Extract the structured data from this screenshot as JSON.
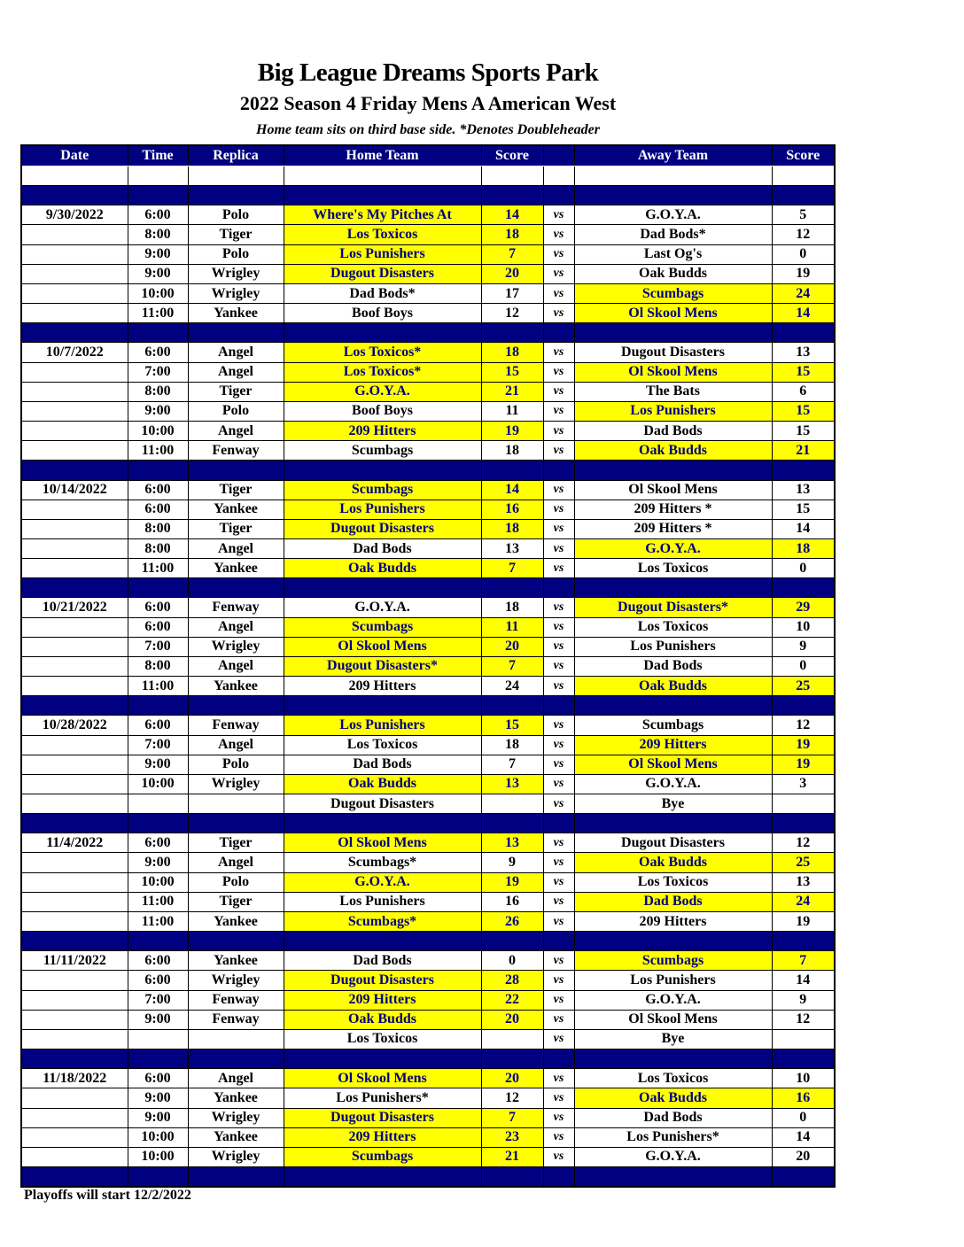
{
  "title": "Big League Dreams Sports Park",
  "subtitle": "2022 Season 4 Friday Mens A American West",
  "note": "Home team sits on third base side.  *Denotes Doubleheader",
  "headers": [
    "Date",
    "Time",
    "Replica",
    "Home Team",
    "Score",
    "",
    "Away Team",
    "Score"
  ],
  "vs_label": "vs",
  "footer": "Playoffs will start 12/2/2022",
  "colors": {
    "header": "#000080",
    "winner_highlight": "#ffff00",
    "winner_text": "#000080"
  },
  "weeks": [
    {
      "date": "9/30/2022",
      "games": [
        {
          "time": "6:00",
          "field": "Polo",
          "home": "Where's My Pitches At",
          "home_score": "14",
          "away": "G.O.Y.A.",
          "away_score": "5",
          "winner": "home"
        },
        {
          "time": "8:00",
          "field": "Tiger",
          "home": "Los Toxicos",
          "home_score": "18",
          "away": "Dad Bods*",
          "away_score": "12",
          "winner": "home"
        },
        {
          "time": "9:00",
          "field": "Polo",
          "home": "Los Punishers",
          "home_score": "7",
          "away": "Last Og's",
          "away_score": "0",
          "winner": "home"
        },
        {
          "time": "9:00",
          "field": "Wrigley",
          "home": "Dugout Disasters",
          "home_score": "20",
          "away": "Oak Budds",
          "away_score": "19",
          "winner": "home"
        },
        {
          "time": "10:00",
          "field": "Wrigley",
          "home": "Dad Bods*",
          "home_score": "17",
          "away": "Scumbags",
          "away_score": "24",
          "winner": "away"
        },
        {
          "time": "11:00",
          "field": "Yankee",
          "home": "Boof Boys",
          "home_score": "12",
          "away": "Ol Skool Mens",
          "away_score": "14",
          "winner": "away"
        }
      ]
    },
    {
      "date": "10/7/2022",
      "games": [
        {
          "time": "6:00",
          "field": "Angel",
          "home": "Los Toxicos*",
          "home_score": "18",
          "away": "Dugout Disasters",
          "away_score": "13",
          "winner": "home"
        },
        {
          "time": "7:00",
          "field": "Angel",
          "home": "Los Toxicos*",
          "home_score": "15",
          "away": "Ol Skool Mens",
          "away_score": "15",
          "winner": "both"
        },
        {
          "time": "8:00",
          "field": "Tiger",
          "home": "G.O.Y.A.",
          "home_score": "21",
          "away": "The Bats",
          "away_score": "6",
          "winner": "home"
        },
        {
          "time": "9:00",
          "field": "Polo",
          "home": "Boof Boys",
          "home_score": "11",
          "away": "Los Punishers",
          "away_score": "15",
          "winner": "away"
        },
        {
          "time": "10:00",
          "field": "Angel",
          "home": "209 Hitters",
          "home_score": "19",
          "away": "Dad Bods",
          "away_score": "15",
          "winner": "home"
        },
        {
          "time": "11:00",
          "field": "Fenway",
          "home": "Scumbags",
          "home_score": "18",
          "away": "Oak Budds",
          "away_score": "21",
          "winner": "away"
        }
      ]
    },
    {
      "date": "10/14/2022",
      "games": [
        {
          "time": "6:00",
          "field": "Tiger",
          "home": "Scumbags",
          "home_score": "14",
          "away": "Ol Skool Mens",
          "away_score": "13",
          "winner": "home"
        },
        {
          "time": "6:00",
          "field": "Yankee",
          "home": "Los Punishers",
          "home_score": "16",
          "away": "209 Hitters *",
          "away_score": "15",
          "winner": "home"
        },
        {
          "time": "8:00",
          "field": "Tiger",
          "home": "Dugout Disasters",
          "home_score": "18",
          "away": "209 Hitters *",
          "away_score": "14",
          "winner": "home"
        },
        {
          "time": "8:00",
          "field": "Angel",
          "home": "Dad Bods",
          "home_score": "13",
          "away": "G.O.Y.A.",
          "away_score": "18",
          "winner": "away"
        },
        {
          "time": "11:00",
          "field": "Yankee",
          "home": "Oak Budds",
          "home_score": "7",
          "away": "Los Toxicos",
          "away_score": "0",
          "winner": "home"
        }
      ]
    },
    {
      "date": "10/21/2022",
      "games": [
        {
          "time": "6:00",
          "field": "Fenway",
          "home": "G.O.Y.A.",
          "home_score": "18",
          "away": "Dugout Disasters*",
          "away_score": "29",
          "winner": "away"
        },
        {
          "time": "6:00",
          "field": "Angel",
          "home": "Scumbags",
          "home_score": "11",
          "away": "Los Toxicos",
          "away_score": "10",
          "winner": "home"
        },
        {
          "time": "7:00",
          "field": "Wrigley",
          "home": "Ol Skool Mens",
          "home_score": "20",
          "away": "Los Punishers",
          "away_score": "9",
          "winner": "home"
        },
        {
          "time": "8:00",
          "field": "Angel",
          "home": "Dugout Disasters*",
          "home_score": "7",
          "away": "Dad Bods",
          "away_score": "0",
          "winner": "home"
        },
        {
          "time": "11:00",
          "field": "Yankee",
          "home": "209 Hitters",
          "home_score": "24",
          "away": "Oak Budds",
          "away_score": "25",
          "winner": "away"
        }
      ]
    },
    {
      "date": "10/28/2022",
      "games": [
        {
          "time": "6:00",
          "field": "Fenway",
          "home": "Los Punishers",
          "home_score": "15",
          "away": "Scumbags",
          "away_score": "12",
          "winner": "home"
        },
        {
          "time": "7:00",
          "field": "Angel",
          "home": "Los Toxicos",
          "home_score": "18",
          "away": "209 Hitters",
          "away_score": "19",
          "winner": "away"
        },
        {
          "time": "9:00",
          "field": "Polo",
          "home": "Dad Bods",
          "home_score": "7",
          "away": "Ol Skool Mens",
          "away_score": "19",
          "winner": "away"
        },
        {
          "time": "10:00",
          "field": "Wrigley",
          "home": "Oak Budds",
          "home_score": "13",
          "away": "G.O.Y.A.",
          "away_score": "3",
          "winner": "home"
        },
        {
          "time": "",
          "field": "",
          "home": "Dugout Disasters",
          "home_score": "",
          "away": "Bye",
          "away_score": "",
          "winner": ""
        }
      ]
    },
    {
      "date": "11/4/2022",
      "games": [
        {
          "time": "6:00",
          "field": "Tiger",
          "home": "Ol Skool Mens",
          "home_score": "13",
          "away": "Dugout Disasters",
          "away_score": "12",
          "winner": "home"
        },
        {
          "time": "9:00",
          "field": "Angel",
          "home": "Scumbags*",
          "home_score": "9",
          "away": "Oak Budds",
          "away_score": "25",
          "winner": "away"
        },
        {
          "time": "10:00",
          "field": "Polo",
          "home": "G.O.Y.A.",
          "home_score": "19",
          "away": "Los Toxicos",
          "away_score": "13",
          "winner": "home"
        },
        {
          "time": "11:00",
          "field": "Tiger",
          "home": "Los Punishers",
          "home_score": "16",
          "away": "Dad Bods",
          "away_score": "24",
          "winner": "away"
        },
        {
          "time": "11:00",
          "field": "Yankee",
          "home": "Scumbags*",
          "home_score": "26",
          "away": "209 Hitters",
          "away_score": "19",
          "winner": "home"
        }
      ]
    },
    {
      "date": "11/11/2022",
      "games": [
        {
          "time": "6:00",
          "field": "Yankee",
          "home": "Dad Bods",
          "home_score": "0",
          "away": "Scumbags",
          "away_score": "7",
          "winner": "away"
        },
        {
          "time": "6:00",
          "field": "Wrigley",
          "home": "Dugout Disasters",
          "home_score": "28",
          "away": "Los Punishers",
          "away_score": "14",
          "winner": "home"
        },
        {
          "time": "7:00",
          "field": "Fenway",
          "home": "209 Hitters",
          "home_score": "22",
          "away": "G.O.Y.A.",
          "away_score": "9",
          "winner": "home"
        },
        {
          "time": "9:00",
          "field": "Fenway",
          "home": "Oak Budds",
          "home_score": "20",
          "away": "Ol Skool Mens",
          "away_score": "12",
          "winner": "home"
        },
        {
          "time": "",
          "field": "",
          "home": "Los Toxicos",
          "home_score": "",
          "away": "Bye",
          "away_score": "",
          "winner": ""
        }
      ]
    },
    {
      "date": "11/18/2022",
      "games": [
        {
          "time": "6:00",
          "field": "Angel",
          "home": "Ol Skool Mens",
          "home_score": "20",
          "away": "Los Toxicos",
          "away_score": "10",
          "winner": "home"
        },
        {
          "time": "9:00",
          "field": "Yankee",
          "home": "Los Punishers*",
          "home_score": "12",
          "away": "Oak Budds",
          "away_score": "16",
          "winner": "away"
        },
        {
          "time": "9:00",
          "field": "Wrigley",
          "home": "Dugout Disasters",
          "home_score": "7",
          "away": "Dad Bods",
          "away_score": "0",
          "winner": "home"
        },
        {
          "time": "10:00",
          "field": "Yankee",
          "home": "209 Hitters",
          "home_score": "23",
          "away": "Los Punishers*",
          "away_score": "14",
          "winner": "home"
        },
        {
          "time": "10:00",
          "field": "Wrigley",
          "home": "Scumbags",
          "home_score": "21",
          "away": "G.O.Y.A.",
          "away_score": "20",
          "winner": "home"
        }
      ]
    }
  ]
}
